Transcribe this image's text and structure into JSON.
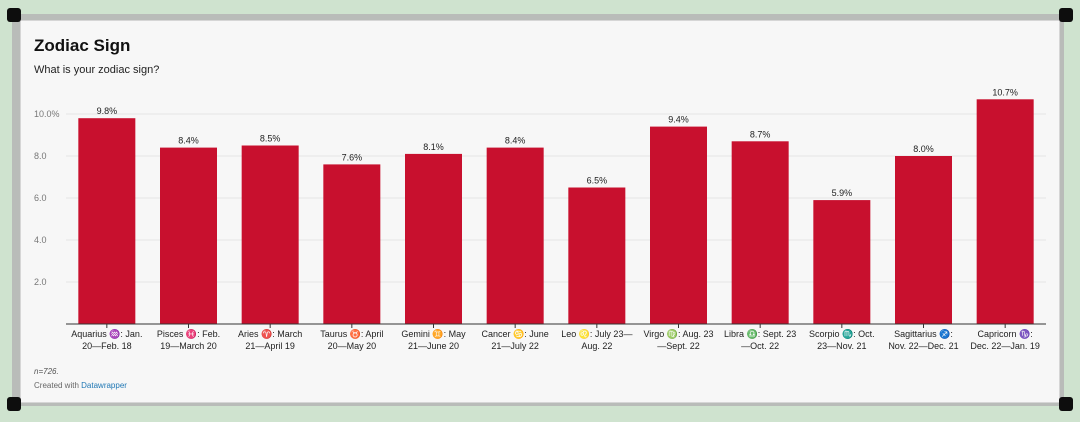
{
  "title": "Zodiac Sign",
  "subtitle": "What is your zodiac sign?",
  "note": "n=726.",
  "credit": {
    "prefix": "Created with ",
    "link": "Datawrapper"
  },
  "colors": {
    "bar": "#c8102e",
    "link": "#1f77b4",
    "background": "#f7f7f7"
  },
  "chart_data": {
    "type": "bar",
    "title": "Zodiac Sign",
    "subtitle": "What is your zodiac sign?",
    "xlabel": "",
    "ylabel": "",
    "ylim": [
      0,
      10.7
    ],
    "yticks": [
      "2.0",
      "4.0",
      "6.0",
      "8.0",
      "10.0%"
    ],
    "ytick_values": [
      2,
      4,
      6,
      8,
      10
    ],
    "grid": true,
    "categories": [
      [
        "Aquarius ♒: Jan.",
        "20—Feb. 18"
      ],
      [
        "Pisces ♓: Feb.",
        "19—March 20"
      ],
      [
        "Aries ♈: March",
        "21—April 19"
      ],
      [
        "Taurus ♉: April",
        "20—May 20"
      ],
      [
        "Gemini ♊: May",
        "21—June 20"
      ],
      [
        "Cancer ♋: June",
        "21—July 22"
      ],
      [
        "Leo ♌: July 23—",
        "Aug. 22"
      ],
      [
        "Virgo ♍: Aug. 23",
        "—Sept. 22"
      ],
      [
        "Libra ♎: Sept. 23",
        "—Oct. 22"
      ],
      [
        "Scorpio ♏: Oct.",
        "23—Nov. 21"
      ],
      [
        "Sagittarius ♐:",
        "Nov. 22—Dec. 21"
      ],
      [
        "Capricorn ♑:",
        "Dec. 22—Jan. 19"
      ]
    ],
    "values": [
      9.8,
      8.4,
      8.5,
      7.6,
      8.1,
      8.4,
      6.5,
      9.4,
      8.7,
      5.9,
      8.0,
      10.7
    ],
    "value_labels": [
      "9.8%",
      "8.4%",
      "8.5%",
      "7.6%",
      "8.1%",
      "8.4%",
      "6.5%",
      "9.4%",
      "8.7%",
      "5.9%",
      "8.0%",
      "10.7%"
    ]
  }
}
